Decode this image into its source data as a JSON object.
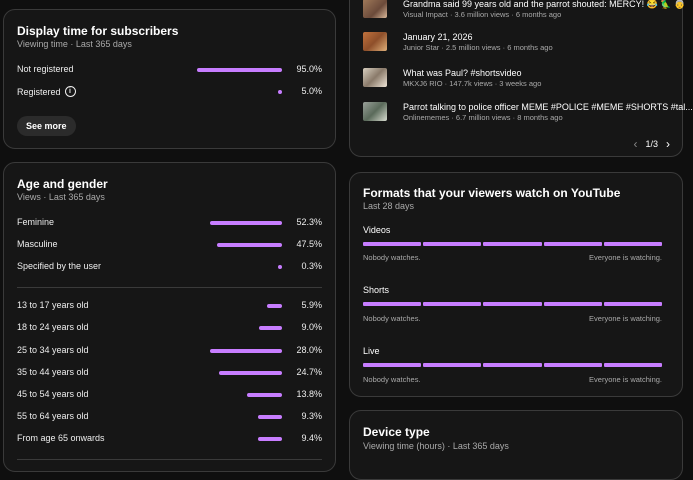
{
  "subscribers": {
    "title": "Display time for subscribers",
    "subtitle": "Viewing time · Last 365 days",
    "rows": [
      {
        "label": "Not registered",
        "pct": "95.0%",
        "value": 95.0
      },
      {
        "label": "Registered",
        "pct": "5.0%",
        "value": 5.0
      }
    ],
    "see_more": "See more"
  },
  "age_gender": {
    "title": "Age and gender",
    "subtitle": "Views · Last 365 days",
    "gender": [
      {
        "label": "Feminine",
        "pct": "52.3%",
        "value": 52.3
      },
      {
        "label": "Masculine",
        "pct": "47.5%",
        "value": 47.5
      },
      {
        "label": "Specified by the user",
        "pct": "0.3%",
        "value": 0.3
      }
    ],
    "ages": [
      {
        "label": "13 to 17 years old",
        "pct": "5.9%",
        "value": 5.9
      },
      {
        "label": "18 to 24 years old",
        "pct": "9.0%",
        "value": 9.0
      },
      {
        "label": "25 to 34 years old",
        "pct": "28.0%",
        "value": 28.0
      },
      {
        "label": "35 to 44 years old",
        "pct": "24.7%",
        "value": 24.7
      },
      {
        "label": "45 to 54 years old",
        "pct": "13.8%",
        "value": 13.8
      },
      {
        "label": "55 to 64 years old",
        "pct": "9.3%",
        "value": 9.3
      },
      {
        "label": "From age 65 onwards",
        "pct": "9.4%",
        "value": 9.4
      }
    ]
  },
  "videos": {
    "items": [
      {
        "title": "Grandma said 99 years old and the parrot shouted: MERCY! 😂 🦜 👵",
        "meta": "Visual Impact · 3.6 million views · 6 months ago"
      },
      {
        "title": "January 21, 2026",
        "meta": "Junior Star · 2.5 million views · 6 months ago"
      },
      {
        "title": "What was Paul? #shortsvideo",
        "meta": "MKXJ6 RIO · 147.7k views · 3 weeks ago"
      },
      {
        "title": "Parrot talking to police officer MEME #POLICE #MEME #SHORTS #tal...",
        "meta": "Onlinememes · 6.7 million views · 8 months ago"
      }
    ],
    "pagination": "1/3"
  },
  "formats": {
    "title": "Formats that your viewers watch on YouTube",
    "subtitle": "Last 28 days",
    "items": [
      {
        "label": "Videos",
        "left": "Nobody watches.",
        "right": "Everyone is watching."
      },
      {
        "label": "Shorts",
        "left": "Nobody watches.",
        "right": "Everyone is watching."
      },
      {
        "label": "Live",
        "left": "Nobody watches.",
        "right": "Everyone is watching."
      }
    ]
  },
  "device": {
    "title": "Device type",
    "subtitle": "Viewing time (hours) · Last 365 days"
  },
  "colors": {
    "accent": "#c77dff",
    "background": "#0f0f0f",
    "card": "#161616"
  }
}
